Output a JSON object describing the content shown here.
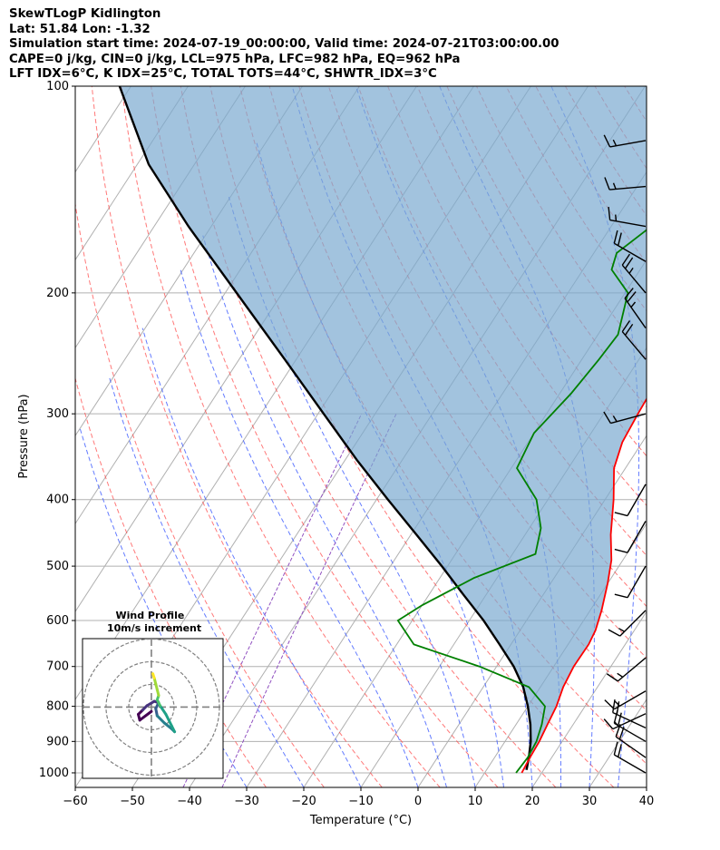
{
  "header": {
    "line1": "SkewTLogP Kidlington",
    "line2": "Lat: 51.84   Lon: -1.32",
    "line3": "Simulation start time: 2024-07-19_00:00:00, Valid time: 2024-07-21T03:00:00.00",
    "line4": "CAPE=0 j/kg, CIN=0 j/kg, LCL=975 hPa, LFC=982 hPa, EQ=962 hPa",
    "line5": "LFT IDX=6$^\\circ$C, K IDX=25$^\\circ$C, TOTAL TOTS=44$^\\circ$C, SHWTR_IDX=3$^\\circ$C"
  },
  "chart_data": {
    "type": "line",
    "title": "SkewTLogP Kidlington",
    "xlabel": "Temperature ($^\\circ$C)",
    "ylabel": "Pressure (hPa)",
    "xlim": [
      -60,
      40
    ],
    "ylim": [
      1050,
      100
    ],
    "yscale": "log",
    "grid": true,
    "xticks": [
      "−60",
      "−50",
      "−40",
      "−30",
      "−20",
      "−10",
      "0",
      "10",
      "20",
      "30",
      "40"
    ],
    "yticks": [
      "100",
      "200",
      "300",
      "400",
      "500",
      "600",
      "700",
      "800",
      "900",
      "1000"
    ],
    "series": [
      {
        "name": "Temperature",
        "color": "#ff0000",
        "points": [
          [
            16.5,
            1000
          ],
          [
            16.2,
            950
          ],
          [
            16.0,
            900
          ],
          [
            15.5,
            850
          ],
          [
            15.0,
            800
          ],
          [
            14.0,
            750
          ],
          [
            13.5,
            700
          ],
          [
            13.6,
            650
          ],
          [
            13.2,
            620
          ],
          [
            12.0,
            580
          ],
          [
            10.0,
            530
          ],
          [
            8.0,
            490
          ],
          [
            5.0,
            450
          ],
          [
            1.5,
            400
          ],
          [
            -2.0,
            360
          ],
          [
            -3.5,
            330
          ],
          [
            -4.0,
            300
          ],
          [
            -4.5,
            260
          ],
          [
            -4.0,
            230
          ],
          [
            -2.5,
            200
          ],
          [
            1.0,
            175
          ],
          [
            4.0,
            155
          ],
          [
            6.0,
            140
          ],
          [
            7.5,
            125
          ],
          [
            9.0,
            115
          ],
          [
            11.0,
            100
          ]
        ]
      },
      {
        "name": "Dew point",
        "color": "#008000",
        "points": [
          [
            15.5,
            1000
          ],
          [
            15.8,
            950
          ],
          [
            15.5,
            900
          ],
          [
            14.5,
            850
          ],
          [
            13.0,
            800
          ],
          [
            8.0,
            750
          ],
          [
            -3.0,
            700
          ],
          [
            -17.0,
            650
          ],
          [
            -22.5,
            600
          ],
          [
            -20.0,
            570
          ],
          [
            -14.0,
            520
          ],
          [
            -6.0,
            480
          ],
          [
            -8.0,
            440
          ],
          [
            -12.0,
            400
          ],
          [
            -19.0,
            360
          ],
          [
            -20.0,
            320
          ],
          [
            -18.0,
            280
          ],
          [
            -17.0,
            250
          ],
          [
            -16.5,
            230
          ],
          [
            -19.5,
            200
          ],
          [
            -25.0,
            185
          ],
          [
            -26.0,
            175
          ],
          [
            -16.0,
            130
          ],
          [
            -10.0,
            100
          ]
        ]
      },
      {
        "name": "Parcel",
        "color": "#000000",
        "points": [
          [
            17.0,
            990
          ],
          [
            16.0,
            950
          ],
          [
            14.5,
            900
          ],
          [
            12.5,
            850
          ],
          [
            10.0,
            800
          ],
          [
            7.0,
            750
          ],
          [
            3.0,
            700
          ],
          [
            -2.0,
            650
          ],
          [
            -7.5,
            600
          ],
          [
            -14.0,
            550
          ],
          [
            -21.0,
            500
          ],
          [
            -29.0,
            450
          ],
          [
            -38.0,
            400
          ],
          [
            -48.0,
            350
          ],
          [
            -59.0,
            300
          ],
          [
            -72.0,
            250
          ],
          [
            -88.0,
            200
          ],
          [
            -104.0,
            160
          ],
          [
            -118.0,
            130
          ],
          [
            -132.0,
            100
          ]
        ]
      }
    ],
    "wind_barbs": [
      {
        "p": 120,
        "speed": 15,
        "dir": 260
      },
      {
        "p": 140,
        "speed": 15,
        "dir": 265
      },
      {
        "p": 160,
        "speed": 15,
        "dir": 280
      },
      {
        "p": 180,
        "speed": 20,
        "dir": 300
      },
      {
        "p": 200,
        "speed": 25,
        "dir": 320
      },
      {
        "p": 225,
        "speed": 25,
        "dir": 325
      },
      {
        "p": 250,
        "speed": 20,
        "dir": 320
      },
      {
        "p": 300,
        "speed": 15,
        "dir": 255
      },
      {
        "p": 380,
        "speed": 10,
        "dir": 210
      },
      {
        "p": 430,
        "speed": 10,
        "dir": 210
      },
      {
        "p": 500,
        "speed": 10,
        "dir": 210
      },
      {
        "p": 580,
        "speed": 15,
        "dir": 225
      },
      {
        "p": 680,
        "speed": 15,
        "dir": 230
      },
      {
        "p": 760,
        "speed": 15,
        "dir": 240
      },
      {
        "p": 820,
        "speed": 15,
        "dir": 245
      },
      {
        "p": 860,
        "speed": 20,
        "dir": 295
      },
      {
        "p": 900,
        "speed": 20,
        "dir": 300
      },
      {
        "p": 950,
        "speed": 20,
        "dir": 305
      },
      {
        "p": 1000,
        "speed": 20,
        "dir": 300
      }
    ],
    "inset": {
      "title": "Wind Profile",
      "subtitle": "10m/s increment",
      "hodograph": [
        [
          0,
          -0.3
        ],
        [
          -0.8,
          -0.9
        ],
        [
          -0.9,
          -0.5
        ],
        [
          -0.6,
          -0.2
        ],
        [
          -0.3,
          0.1
        ],
        [
          0.2,
          0.4
        ],
        [
          0.5,
          0.3
        ],
        [
          0.3,
          -0.1
        ],
        [
          0.4,
          -0.6
        ],
        [
          0.9,
          -1.1
        ],
        [
          1.4,
          -1.5
        ],
        [
          1.6,
          -1.7
        ],
        [
          1.4,
          -1.3
        ],
        [
          1.0,
          -0.5
        ],
        [
          0.6,
          0.1
        ],
        [
          0.4,
          0.5
        ],
        [
          0.5,
          0.8
        ],
        [
          0.4,
          1.2
        ],
        [
          0.3,
          1.6
        ],
        [
          0.2,
          2.0
        ],
        [
          0.1,
          2.3
        ]
      ]
    }
  }
}
